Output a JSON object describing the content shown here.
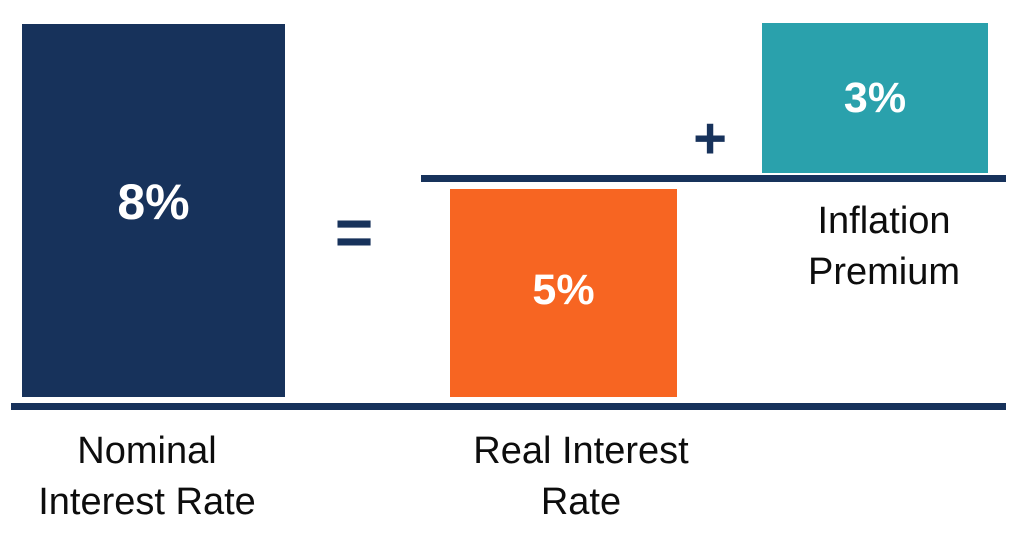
{
  "colors": {
    "navy": "#17325B",
    "orange": "#F76522",
    "teal": "#2AA1AC",
    "label_text": "#0D0D0D",
    "value_text": "#FFFFFF",
    "background": "#FFFFFF"
  },
  "equation": {
    "equals_symbol": "=",
    "plus_symbol": "+"
  },
  "bars": {
    "nominal": {
      "value": "8%",
      "label_lines": [
        "Nominal",
        "Interest Rate"
      ],
      "color": "#17325B"
    },
    "real": {
      "value": "5%",
      "label_lines": [
        "Real Interest",
        "Rate"
      ],
      "color": "#F76522"
    },
    "inflation": {
      "value": "3%",
      "label_lines": [
        "Inflation",
        "Premium"
      ],
      "color": "#2AA1AC"
    }
  },
  "chart_data": {
    "type": "bar",
    "categories": [
      "Nominal Interest Rate",
      "Real Interest Rate",
      "Inflation Premium"
    ],
    "values": [
      8,
      5,
      3
    ],
    "unit": "percent",
    "relationship": "Nominal Interest Rate = Real Interest Rate + Inflation Premium",
    "data_labels": [
      "8%",
      "5%",
      "3%"
    ],
    "legend": "none",
    "grid": false
  }
}
